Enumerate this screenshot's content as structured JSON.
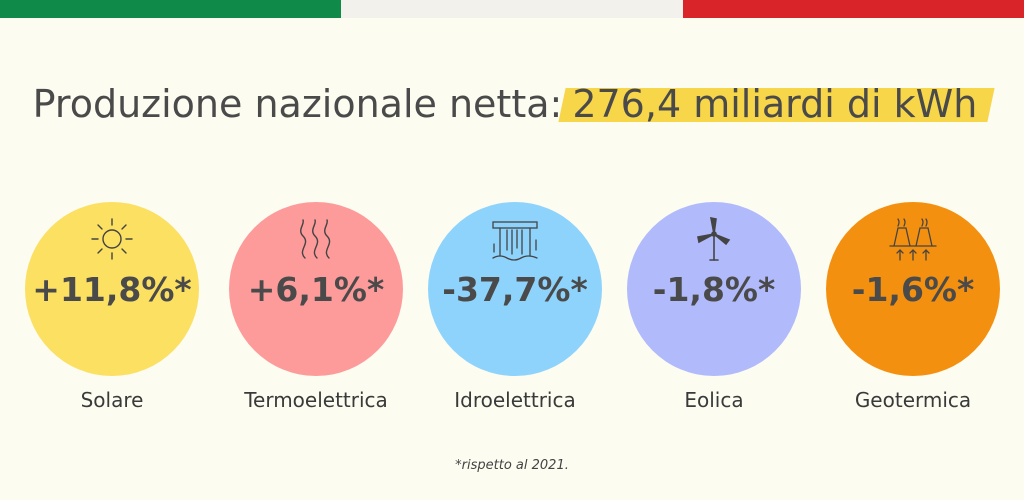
{
  "flag": {
    "colors": [
      "#0f8a48",
      "#f2f1ec",
      "#d9252a"
    ]
  },
  "title": {
    "prefix": "Produzione nazionale netta:",
    "highlight": "276,4 miliardi di kWh"
  },
  "sources": [
    {
      "label": "Solare",
      "change": "+11,8%*",
      "color": "#fbe062",
      "icon": "sun-icon"
    },
    {
      "label": "Termoelettrica",
      "change": "+6,1%*",
      "color": "#fd9b9b",
      "icon": "heat-waves-icon"
    },
    {
      "label": "Idroelettrica",
      "change": "-37,7%*",
      "color": "#8ed3fc",
      "icon": "dam-icon"
    },
    {
      "label": "Eolica",
      "change": "-1,8%*",
      "color": "#b1bbfb",
      "icon": "wind-turbine-icon"
    },
    {
      "label": "Geotermica",
      "change": "-1,6%*",
      "color": "#f4900f",
      "icon": "geothermal-plant-icon"
    }
  ],
  "footnote": "*rispetto al 2021."
}
